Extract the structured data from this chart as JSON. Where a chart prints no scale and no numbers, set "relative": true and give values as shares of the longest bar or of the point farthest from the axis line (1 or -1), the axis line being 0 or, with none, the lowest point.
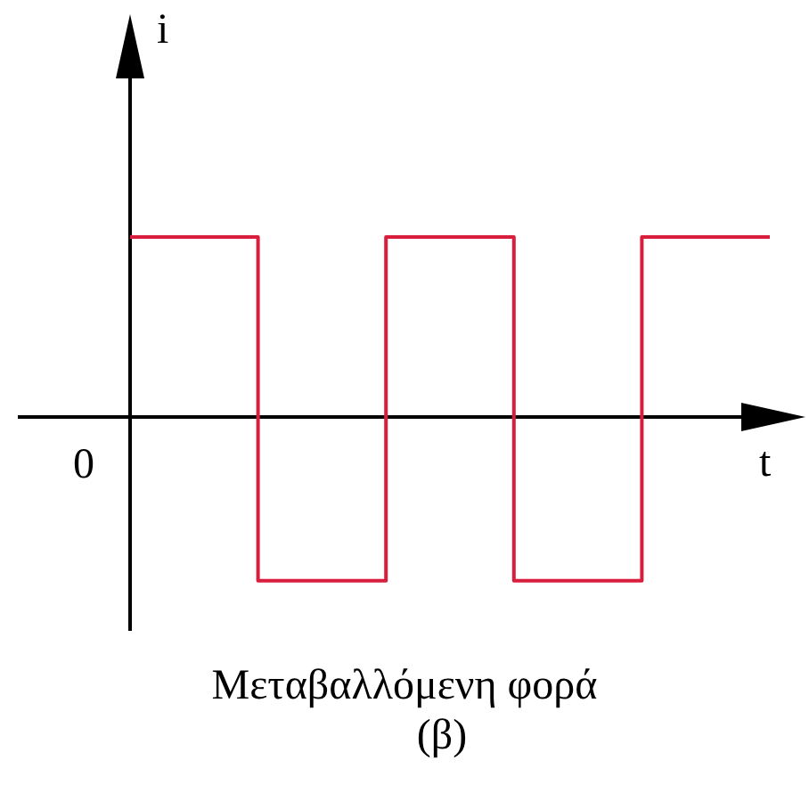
{
  "chart_data": {
    "type": "step",
    "relative": true,
    "categories": [
      null,
      null,
      null,
      null,
      null,
      null
    ],
    "values": [
      1,
      -0.91,
      1,
      -0.91,
      1,
      1
    ],
    "color": "#d81e3c",
    "xlabel": "t",
    "ylabel": "i",
    "title": "Μεταβαλλόμενη φορά",
    "subtitle": "(β)",
    "annotations": [
      "0"
    ]
  }
}
